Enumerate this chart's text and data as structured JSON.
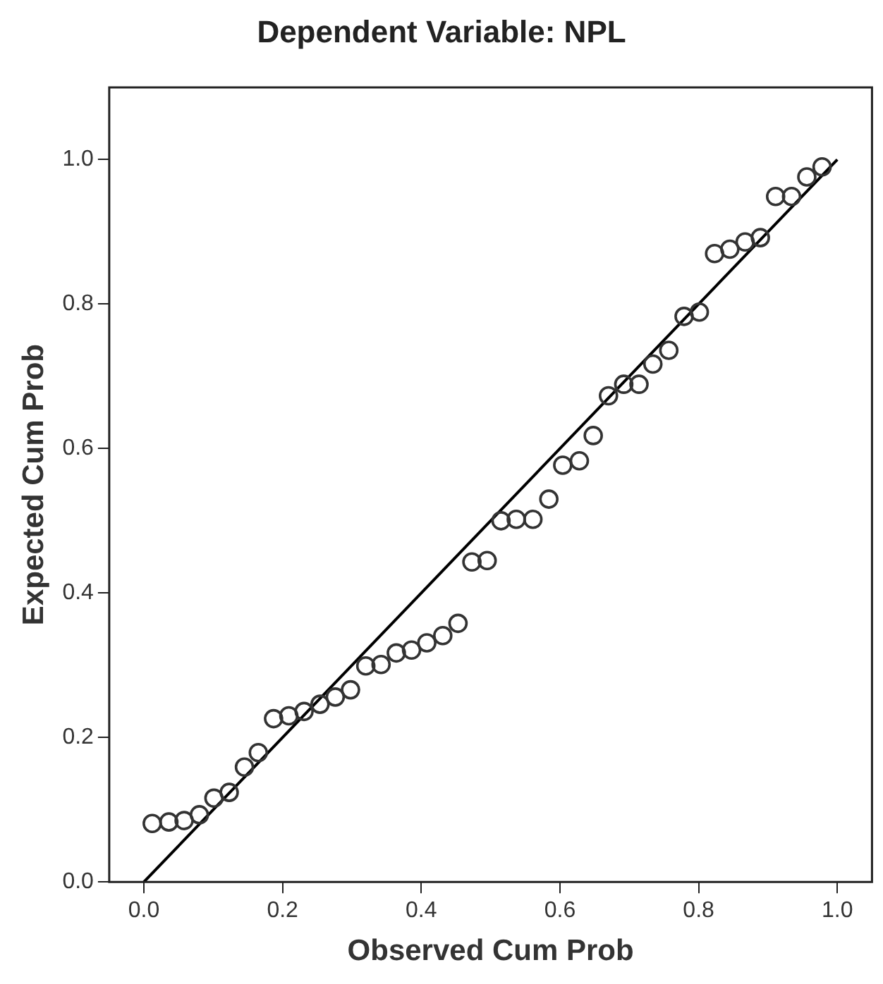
{
  "chart_data": {
    "type": "scatter",
    "title": "Dependent Variable: NPL",
    "xlabel": "Observed Cum Prob",
    "ylabel": "Expected Cum Prob",
    "xlim": [
      -0.05,
      1.05
    ],
    "ylim": [
      0,
      1.1
    ],
    "xticks": [
      {
        "value": 0,
        "label": "0.0"
      },
      {
        "value": 0.2,
        "label": "0.2"
      },
      {
        "value": 0.4,
        "label": "0.4"
      },
      {
        "value": 0.6,
        "label": "0.6"
      },
      {
        "value": 0.8,
        "label": "0.8"
      },
      {
        "value": 1,
        "label": "1.0"
      }
    ],
    "yticks": [
      {
        "value": 0,
        "label": "0.0"
      },
      {
        "value": 0.2,
        "label": "0.2"
      },
      {
        "value": 0.4,
        "label": "0.4"
      },
      {
        "value": 0.6,
        "label": "0.6"
      },
      {
        "value": 0.8,
        "label": "0.8"
      },
      {
        "value": 1,
        "label": "1.0"
      }
    ],
    "grid": false,
    "legend": false,
    "marker": "circle",
    "series": [
      {
        "type": "scatter",
        "color": "#333333",
        "x": [
          0.012,
          0.036,
          0.058,
          0.08,
          0.101,
          0.123,
          0.145,
          0.165,
          0.187,
          0.209,
          0.231,
          0.254,
          0.276,
          0.298,
          0.32,
          0.342,
          0.364,
          0.386,
          0.408,
          0.431,
          0.453,
          0.473,
          0.495,
          0.515,
          0.537,
          0.561,
          0.584,
          0.604,
          0.628,
          0.648,
          0.67,
          0.692,
          0.714,
          0.734,
          0.757,
          0.779,
          0.801,
          0.823,
          0.845,
          0.867,
          0.889,
          0.911,
          0.934,
          0.956,
          0.978
        ],
        "values": [
          0.081,
          0.083,
          0.085,
          0.093,
          0.116,
          0.124,
          0.159,
          0.179,
          0.226,
          0.23,
          0.236,
          0.246,
          0.256,
          0.266,
          0.299,
          0.301,
          0.317,
          0.321,
          0.331,
          0.341,
          0.358,
          0.443,
          0.445,
          0.5,
          0.502,
          0.502,
          0.53,
          0.577,
          0.583,
          0.618,
          0.673,
          0.689,
          0.689,
          0.717,
          0.736,
          0.783,
          0.789,
          0.87,
          0.876,
          0.886,
          0.892,
          0.949,
          0.949,
          0.976,
          0.99
        ]
      },
      {
        "type": "line",
        "color": "#000000",
        "marker": "none",
        "x": [
          0,
          1
        ],
        "values": [
          0,
          1
        ]
      }
    ]
  }
}
